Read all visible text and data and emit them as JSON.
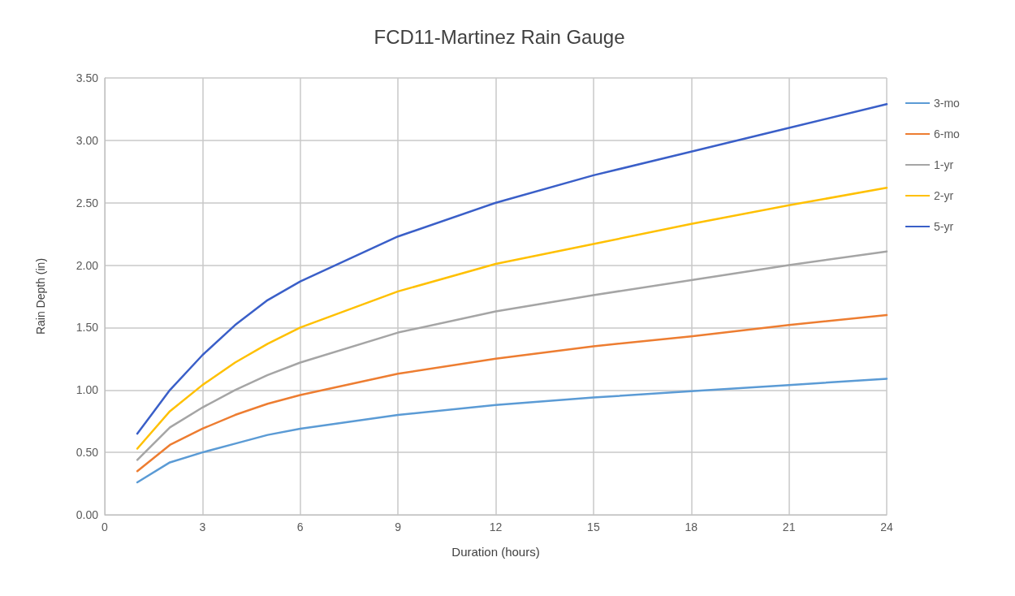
{
  "chart_data": {
    "type": "line",
    "title": "FCD11-Martinez Rain Gauge",
    "xlabel": "Duration (hours)",
    "ylabel": "Rain Depth (in)",
    "x": [
      1,
      2,
      3,
      4,
      5,
      6,
      9,
      12,
      15,
      18,
      21,
      24
    ],
    "series": [
      {
        "name": "3-mo",
        "color": "#5b9bd5",
        "values": [
          0.26,
          0.42,
          0.5,
          0.57,
          0.64,
          0.69,
          0.8,
          0.88,
          0.94,
          0.99,
          1.04,
          1.09
        ]
      },
      {
        "name": "6-mo",
        "color": "#ed7d31",
        "values": [
          0.35,
          0.56,
          0.69,
          0.8,
          0.89,
          0.96,
          1.13,
          1.25,
          1.35,
          1.43,
          1.52,
          1.6
        ]
      },
      {
        "name": "1-yr",
        "color": "#a5a5a5",
        "values": [
          0.44,
          0.7,
          0.86,
          1.0,
          1.12,
          1.22,
          1.46,
          1.63,
          1.76,
          1.88,
          2.0,
          2.11
        ]
      },
      {
        "name": "2-yr",
        "color": "#ffc000",
        "values": [
          0.53,
          0.83,
          1.04,
          1.22,
          1.37,
          1.5,
          1.79,
          2.01,
          2.17,
          2.33,
          2.48,
          2.62
        ]
      },
      {
        "name": "5-yr",
        "color": "#3a5fc8",
        "values": [
          0.65,
          1.0,
          1.28,
          1.52,
          1.72,
          1.87,
          2.23,
          2.5,
          2.72,
          2.91,
          3.1,
          3.29
        ]
      }
    ],
    "xlim": [
      0,
      24
    ],
    "xticks": [
      0,
      3,
      6,
      9,
      12,
      15,
      18,
      21,
      24
    ],
    "ylim": [
      0,
      3.5
    ],
    "yticks": [
      {
        "value": 0,
        "label": "0.00"
      },
      {
        "value": 0.5,
        "label": "0.50"
      },
      {
        "value": 1,
        "label": "1.00"
      },
      {
        "value": 1.5,
        "label": "1.50"
      },
      {
        "value": 2,
        "label": "2.00"
      },
      {
        "value": 2.5,
        "label": "2.50"
      },
      {
        "value": 3,
        "label": "3.00"
      },
      {
        "value": 3.5,
        "label": "3.50"
      }
    ],
    "grid": true,
    "legend": "right",
    "marker": "none",
    "line_style": "solid"
  }
}
